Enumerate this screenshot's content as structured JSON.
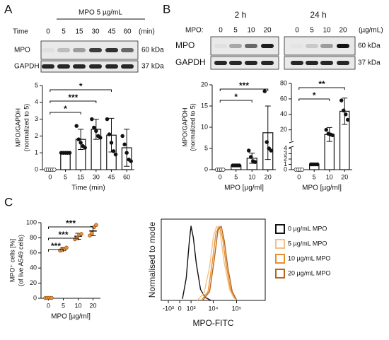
{
  "panel_labels": [
    "A",
    "B",
    "C"
  ],
  "blot_a": {
    "treatment": "MPO 5 µg/mL",
    "time_label": "Time",
    "times": [
      "0",
      "5",
      "15",
      "30",
      "45",
      "60"
    ],
    "unit": "(min)",
    "rows": [
      {
        "name": "MPO",
        "size": "60 kDa"
      },
      {
        "name": "GAPDH",
        "size": "37 kDa"
      }
    ]
  },
  "blot_b": {
    "titles": [
      "2 h",
      "24 h"
    ],
    "dose_label": "MPO:",
    "doses": [
      "0",
      "5",
      "10",
      "20"
    ],
    "unit": "(µg/mL)",
    "rows": [
      {
        "name": "MPO",
        "size": "60 kDa"
      },
      {
        "name": "GAPDH",
        "size": "37 kDa"
      }
    ]
  },
  "chart_data": [
    {
      "type": "bar",
      "x_label": "Time (min)",
      "y_label": [
        "MPO/GAPDH",
        "(normalized to 5)"
      ],
      "categories": [
        "0",
        "5",
        "15",
        "30",
        "45",
        "60"
      ],
      "values": [
        0.05,
        1,
        1.8,
        2.4,
        2.05,
        1.3
      ],
      "errors": [
        0,
        0,
        0.6,
        0.6,
        1.0,
        1.1
      ],
      "points": [
        [
          0,
          0,
          0,
          0,
          0
        ],
        [
          1,
          1,
          1,
          1,
          1
        ],
        [
          2.6,
          1.8,
          1.6,
          1.4,
          1.3
        ],
        [
          3.0,
          2.5,
          2.3,
          2.0,
          1.9
        ],
        [
          3.0,
          2.1,
          1.6,
          1.1,
          0.9
        ],
        [
          2.0,
          1.5,
          1.0,
          0.6,
          0.5
        ]
      ],
      "ylim": [
        0,
        5
      ],
      "yticks": [
        0,
        1,
        2,
        3,
        4,
        5
      ],
      "significance": [
        {
          "from": 0,
          "to": 2,
          "label": "*"
        },
        {
          "from": 0,
          "to": 3,
          "label": "***"
        },
        {
          "from": 0,
          "to": 4,
          "label": "*"
        }
      ]
    },
    {
      "type": "bar",
      "x_label": "MPO [µg/ml]",
      "y_label": [
        "MPO/GAPDH",
        "(normalized to 5)"
      ],
      "categories": [
        "0",
        "5",
        "10",
        "20"
      ],
      "values": [
        0.05,
        1,
        2.7,
        8.7
      ],
      "errors": [
        0,
        0,
        1.2,
        6.3
      ],
      "points": [
        [
          0,
          0,
          0,
          0
        ],
        [
          1,
          1,
          1,
          1
        ],
        [
          4.5,
          3,
          2,
          1.8
        ],
        [
          18.5,
          6.5,
          5,
          4.5
        ]
      ],
      "ylim": [
        0,
        20
      ],
      "yticks": [
        0,
        5,
        10,
        15,
        20
      ],
      "significance": [
        {
          "from": 0,
          "to": 2,
          "label": "*"
        },
        {
          "from": 0,
          "to": 3,
          "label": "***"
        }
      ]
    },
    {
      "type": "bar",
      "x_label": "MPO [µg/ml]",
      "categories": [
        "0",
        "5",
        "10",
        "20"
      ],
      "values": [
        0.05,
        1,
        14,
        44
      ],
      "errors": [
        0,
        0,
        9,
        17
      ],
      "points": [
        [
          0,
          0,
          0,
          0
        ],
        [
          1,
          1,
          1,
          1
        ],
        [
          20,
          15,
          14,
          13
        ],
        [
          58,
          45,
          40,
          33
        ]
      ],
      "ylim": [
        0,
        80
      ],
      "ybreak": [
        4,
        6
      ],
      "yticks": [
        0,
        1,
        2,
        3,
        4,
        20,
        40,
        60,
        80
      ],
      "significance": [
        {
          "from": 0,
          "to": 2,
          "label": "*"
        },
        {
          "from": 0,
          "to": 3,
          "label": "**"
        }
      ]
    },
    {
      "type": "dotplot",
      "x_label": "MPO [µg/ml]",
      "y_label": [
        "MPO⁺ cells [%]",
        "(of live A549 cells)"
      ],
      "categories": [
        "0",
        "5",
        "10",
        "20"
      ],
      "color": "#e8913a",
      "values": [
        0.5,
        65,
        82,
        89
      ],
      "errors": [
        0.2,
        2,
        4,
        6
      ],
      "points": [
        [
          0.4,
          0.5,
          0.6,
          0.5
        ],
        [
          63,
          64,
          65,
          67
        ],
        [
          78,
          80,
          84,
          85
        ],
        [
          83,
          86,
          94,
          97
        ]
      ],
      "ylim": [
        0,
        100
      ],
      "yticks": [
        0,
        20,
        40,
        60,
        80,
        100
      ],
      "significance": [
        {
          "from": 0,
          "to": 1,
          "label": "***"
        },
        {
          "from": 0,
          "to": 2,
          "label": "***"
        },
        {
          "from": 0,
          "to": 3,
          "label": "***"
        }
      ]
    },
    {
      "type": "line",
      "x_label": "MPO-FITC",
      "y_label": "Normalised to mode",
      "xscale": "biexponential",
      "xlim": [
        -2200,
        1700000
      ],
      "ylim": [
        0,
        100
      ],
      "xticks": [
        {
          "value": -1000,
          "label": "-10³"
        },
        0,
        {
          "value": 1000,
          "label": "10³"
        },
        {
          "value": 10000,
          "label": "10⁴"
        },
        {
          "value": 100000,
          "label": "10⁵"
        }
      ],
      "legend": "right",
      "series": [
        {
          "name": "0 µg/mL MPO",
          "color": "#111111",
          "x": [
            200,
            500,
            800,
            1000,
            1300,
            1800,
            2800,
            4500,
            8000
          ],
          "values": [
            2,
            30,
            80,
            100,
            85,
            50,
            15,
            4,
            0
          ]
        },
        {
          "name": "5 µg/mL MPO",
          "color": "#f5c08a",
          "x": [
            2000,
            4000,
            7000,
            10000,
            14000,
            20000,
            30000,
            50000,
            80000
          ],
          "values": [
            0,
            10,
            45,
            85,
            100,
            90,
            50,
            15,
            2
          ]
        },
        {
          "name": "10 µg/mL MPO",
          "color": "#e8902a",
          "x": [
            3000,
            6000,
            9000,
            13000,
            18000,
            25000,
            35000,
            55000,
            90000
          ],
          "values": [
            0,
            12,
            50,
            90,
            100,
            85,
            50,
            15,
            2
          ]
        },
        {
          "name": "20 µg/mL MPO",
          "color": "#b8641a",
          "x": [
            3500,
            7000,
            11000,
            16000,
            22000,
            30000,
            42000,
            65000,
            100000
          ],
          "values": [
            0,
            12,
            55,
            95,
            100,
            80,
            45,
            12,
            1
          ]
        }
      ]
    }
  ]
}
